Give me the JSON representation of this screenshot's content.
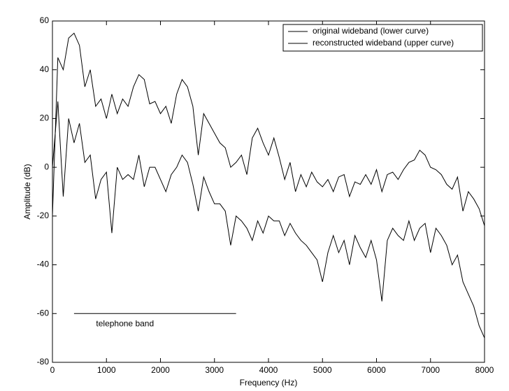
{
  "chart_data": {
    "type": "line",
    "xlabel": "Frequency (Hz)",
    "ylabel": "Amplitude (dB)",
    "x": [
      0,
      100,
      200,
      300,
      400,
      500,
      600,
      700,
      800,
      900,
      1000,
      1100,
      1200,
      1300,
      1400,
      1500,
      1600,
      1700,
      1800,
      1900,
      2000,
      2100,
      2200,
      2300,
      2400,
      2500,
      2600,
      2700,
      2800,
      2900,
      3000,
      3100,
      3200,
      3300,
      3400,
      3500,
      3600,
      3700,
      3800,
      3900,
      4000,
      4100,
      4200,
      4300,
      4400,
      4500,
      4600,
      4700,
      4800,
      4900,
      5000,
      5100,
      5200,
      5300,
      5400,
      5500,
      5600,
      5700,
      5800,
      5900,
      6000,
      6100,
      6200,
      6300,
      6400,
      6500,
      6600,
      6700,
      6800,
      6900,
      7000,
      7100,
      7200,
      7300,
      7400,
      7500,
      7600,
      7700,
      7800,
      7900,
      8000
    ],
    "series": [
      {
        "name": "original wideband (lower curve)",
        "color": "#000000",
        "values": [
          0,
          27,
          -12,
          20,
          10,
          18,
          2,
          5,
          -13,
          -5,
          -2,
          -27,
          0,
          -5,
          -3,
          -5,
          5,
          -8,
          0,
          0,
          -5,
          -10,
          -3,
          0,
          5,
          2,
          -7,
          -18,
          -4,
          -10,
          -15,
          -15,
          -18,
          -32,
          -20,
          -22,
          -25,
          -30,
          -22,
          -27,
          -20,
          -22,
          -22,
          -28,
          -23,
          -27,
          -30,
          -32,
          -35,
          -38,
          -47,
          -35,
          -28,
          -35,
          -30,
          -40,
          -28,
          -33,
          -37,
          -30,
          -38,
          -55,
          -30,
          -25,
          -28,
          -30,
          -22,
          -30,
          -25,
          -23,
          -35,
          -25,
          -28,
          -32,
          -40,
          -36,
          -47,
          -52,
          -57,
          -65,
          -70
        ]
      },
      {
        "name": "reconstructed wideband (upper curve)",
        "color": "#000000",
        "values": [
          -20,
          45,
          40,
          53,
          55,
          50,
          33,
          40,
          25,
          28,
          20,
          30,
          22,
          28,
          25,
          33,
          38,
          36,
          26,
          27,
          22,
          25,
          18,
          30,
          36,
          33,
          25,
          5,
          22,
          18,
          14,
          10,
          8,
          0,
          2,
          5,
          -3,
          12,
          16,
          10,
          5,
          12,
          4,
          -5,
          2,
          -10,
          -3,
          -8,
          -2,
          -6,
          -8,
          -5,
          -10,
          -4,
          -3,
          -12,
          -6,
          -7,
          -3,
          -7,
          -1,
          -10,
          -3,
          -2,
          -5,
          -1,
          2,
          3,
          7,
          5,
          0,
          -1,
          -3,
          -7,
          -9,
          -4,
          -18,
          -10,
          -13,
          -17,
          -24
        ]
      }
    ],
    "xlim": [
      0,
      8000
    ],
    "xticks": [
      0,
      1000,
      2000,
      3000,
      4000,
      5000,
      6000,
      7000,
      8000
    ],
    "ylim": [
      -80,
      60
    ],
    "yticks": [
      -80,
      -60,
      -40,
      -20,
      0,
      20,
      40,
      60
    ],
    "grid": false,
    "legend": "upper right",
    "annotations": [
      {
        "text": "telephone band",
        "x": [
          400,
          3400
        ],
        "y": -60
      }
    ]
  }
}
